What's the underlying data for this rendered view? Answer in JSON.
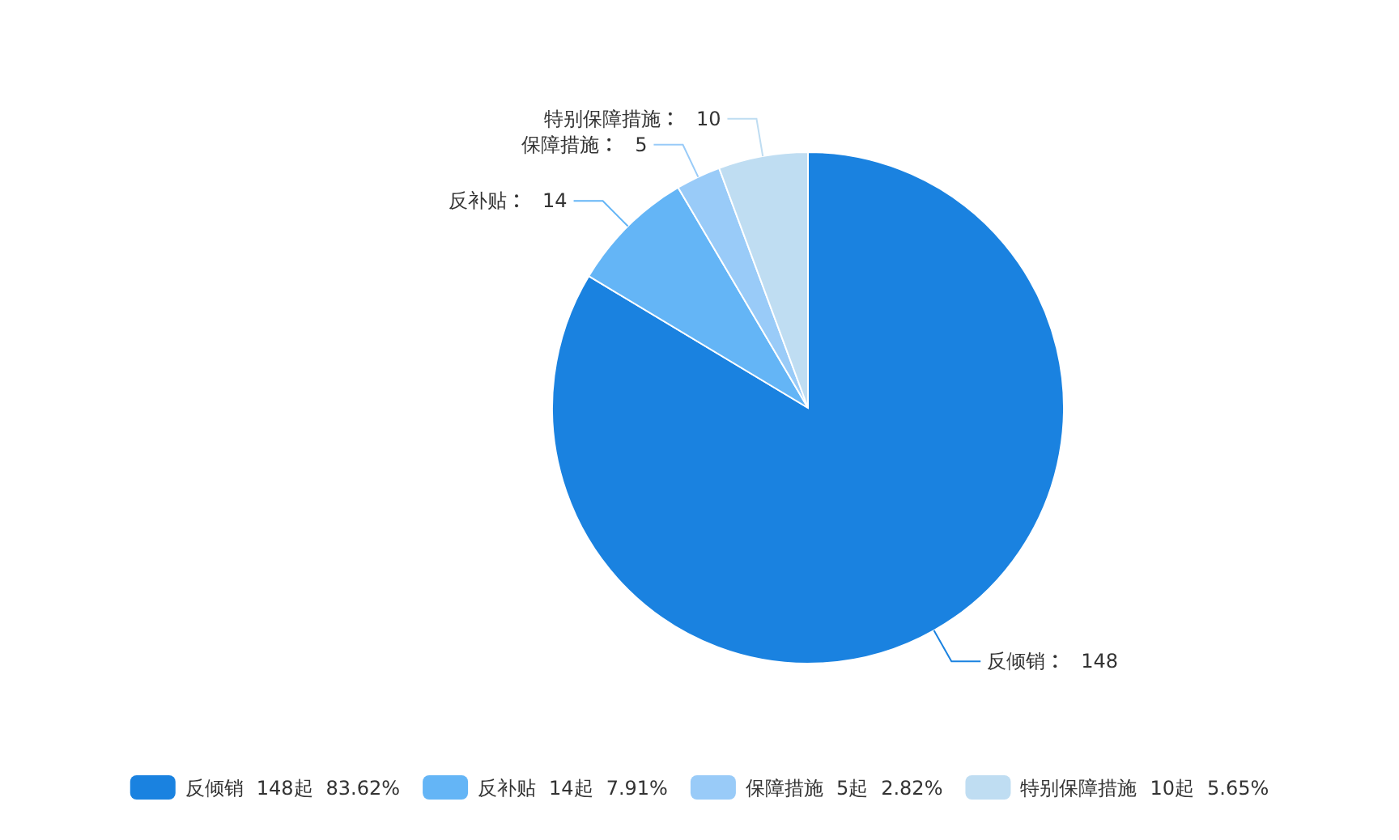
{
  "chart_data": {
    "type": "pie",
    "categories": [
      "反倾销",
      "反补贴",
      "保障措施",
      "特别保障措施"
    ],
    "values": [
      148,
      14,
      5,
      10
    ],
    "colors": [
      "#1a82e0",
      "#64b5f6",
      "#99cbf8",
      "#bfddf2"
    ],
    "value_labels": [
      "148",
      "14",
      "5",
      "10"
    ],
    "annotations": [
      "148起",
      "83.62%",
      "14起",
      "7.91%",
      "5起",
      "2.82%",
      "10起",
      "5.65%"
    ],
    "legend": "bottom"
  }
}
